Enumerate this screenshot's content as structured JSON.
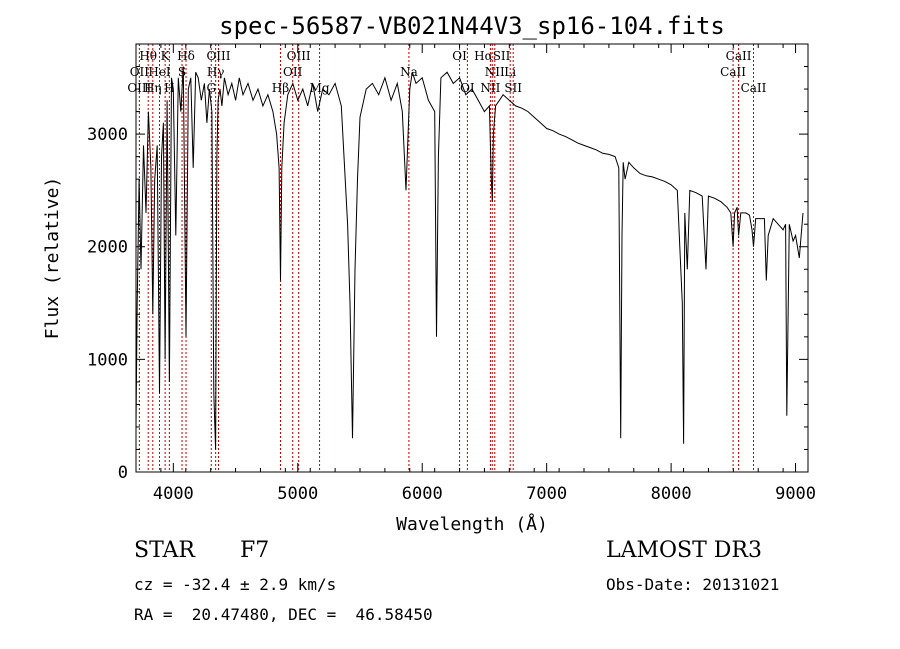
{
  "chart_data": {
    "type": "line",
    "title": "spec-56587-VB021N44V3_sp16-104.fits",
    "xlabel": "Wavelength (Å)",
    "ylabel": "Flux (relative)",
    "xlim": [
      3700,
      9100
    ],
    "ylim": [
      0,
      3800
    ],
    "x_ticks": [
      4000,
      5000,
      6000,
      7000,
      8000,
      9000
    ],
    "y_ticks": [
      0,
      1000,
      2000,
      3000
    ],
    "grid": false,
    "series": [
      {
        "name": "flux",
        "x": [
          3700,
          3710,
          3725,
          3740,
          3760,
          3780,
          3800,
          3820,
          3835,
          3850,
          3870,
          3889,
          3905,
          3920,
          3934,
          3950,
          3968,
          3985,
          4000,
          4020,
          4040,
          4060,
          4080,
          4102,
          4120,
          4140,
          4160,
          4180,
          4200,
          4225,
          4250,
          4270,
          4290,
          4310,
          4325,
          4340,
          4350,
          4360,
          4375,
          4390,
          4410,
          4440,
          4470,
          4500,
          4530,
          4560,
          4600,
          4640,
          4680,
          4720,
          4760,
          4800,
          4830,
          4850,
          4861,
          4872,
          4890,
          4920,
          4960,
          5000,
          5040,
          5080,
          5120,
          5160,
          5200,
          5250,
          5300,
          5350,
          5400,
          5420,
          5440,
          5460,
          5480,
          5500,
          5550,
          5600,
          5650,
          5700,
          5750,
          5800,
          5840,
          5870,
          5890,
          5900,
          5920,
          5950,
          6000,
          6050,
          6100,
          6115,
          6130,
          6150,
          6200,
          6250,
          6300,
          6350,
          6400,
          6450,
          6500,
          6540,
          6555,
          6563,
          6572,
          6590,
          6620,
          6650,
          6700,
          6750,
          6800,
          6850,
          6900,
          6950,
          7000,
          7050,
          7100,
          7150,
          7200,
          7250,
          7300,
          7350,
          7400,
          7450,
          7500,
          7550,
          7580,
          7595,
          7605,
          7615,
          7630,
          7660,
          7700,
          7750,
          7800,
          7850,
          7900,
          7950,
          8000,
          8050,
          8090,
          8100,
          8110,
          8130,
          8150,
          8200,
          8250,
          8280,
          8300,
          8350,
          8400,
          8450,
          8480,
          8498,
          8510,
          8530,
          8542,
          8560,
          8600,
          8630,
          8650,
          8662,
          8680,
          8720,
          8750,
          8765,
          8780,
          8820,
          8860,
          8900,
          8920,
          8930,
          8950,
          8980,
          9000,
          9030,
          9060
        ],
        "values": [
          400,
          1500,
          2600,
          1800,
          2900,
          2300,
          3200,
          2700,
          1400,
          2600,
          2900,
          700,
          2800,
          3100,
          1000,
          3300,
          800,
          3500,
          3400,
          2100,
          3500,
          3200,
          3600,
          1200,
          3400,
          3500,
          2700,
          3550,
          3500,
          3300,
          3450,
          3100,
          3400,
          3200,
          700,
          200,
          2800,
          3300,
          3400,
          3250,
          3500,
          3350,
          3450,
          3300,
          3500,
          3350,
          3450,
          3300,
          3400,
          3250,
          3350,
          3200,
          3000,
          2700,
          1700,
          2700,
          3100,
          3350,
          3450,
          3300,
          3400,
          3250,
          3450,
          3200,
          3400,
          3350,
          3450,
          3250,
          2200,
          1500,
          300,
          1800,
          2600,
          3150,
          3400,
          3450,
          3350,
          3500,
          3300,
          3450,
          3200,
          2500,
          3100,
          3400,
          3550,
          3450,
          3500,
          3300,
          3200,
          1200,
          2800,
          3500,
          3550,
          3450,
          3500,
          3350,
          3400,
          3300,
          3200,
          3250,
          2600,
          2400,
          3000,
          3250,
          3300,
          3350,
          3300,
          3250,
          3230,
          3200,
          3150,
          3100,
          3050,
          3030,
          3000,
          2980,
          2950,
          2920,
          2900,
          2880,
          2860,
          2830,
          2820,
          2800,
          2700,
          300,
          2100,
          2750,
          2600,
          2750,
          2700,
          2650,
          2630,
          2620,
          2600,
          2580,
          2550,
          2500,
          1500,
          250,
          2300,
          1800,
          2500,
          2480,
          2450,
          1800,
          2450,
          2430,
          2400,
          2350,
          2300,
          2000,
          2300,
          2350,
          2100,
          2300,
          2300,
          2280,
          2150,
          2000,
          2250,
          2250,
          2250,
          1700,
          2100,
          2250,
          2200,
          2150,
          2200,
          500,
          2200,
          2050,
          2100,
          1900,
          2300
        ]
      }
    ],
    "line_labels": [
      {
        "text": "Hθ",
        "x": 3798,
        "row": 0
      },
      {
        "text": "OII",
        "x": 3727,
        "row": 1
      },
      {
        "text": "OIII",
        "x": 3727,
        "row": 2
      },
      {
        "text": "K",
        "x": 3934,
        "row": 0
      },
      {
        "text": "HeI",
        "x": 3889,
        "row": 1
      },
      {
        "text": "Hη",
        "x": 3835,
        "row": 2
      },
      {
        "text": "H",
        "x": 3968,
        "row": 2
      },
      {
        "text": "Hδ",
        "x": 4102,
        "row": 0
      },
      {
        "text": "S",
        "x": 4070,
        "row": 1
      },
      {
        "text": "OIII",
        "x": 4363,
        "row": 0
      },
      {
        "text": "Hγ",
        "x": 4340,
        "row": 1
      },
      {
        "text": "G",
        "x": 4305,
        "row": 2
      },
      {
        "text": "OIII",
        "x": 5007,
        "row": 0
      },
      {
        "text": "OII",
        "x": 4959,
        "row": 1
      },
      {
        "text": "Hβ",
        "x": 4861,
        "row": 2
      },
      {
        "text": "Mg",
        "x": 5175,
        "row": 2
      },
      {
        "text": "Na",
        "x": 5893,
        "row": 1
      },
      {
        "text": "OI",
        "x": 6300,
        "row": 0
      },
      {
        "text": "OI",
        "x": 6363,
        "row": 2
      },
      {
        "text": "HαSII",
        "x": 6563,
        "row": 0
      },
      {
        "text": "NII",
        "x": 6583,
        "row": 1
      },
      {
        "text": "NII",
        "x": 6548,
        "row": 2
      },
      {
        "text": "Li",
        "x": 6707,
        "row": 1
      },
      {
        "text": "SII",
        "x": 6731,
        "row": 2
      },
      {
        "text": "CaII",
        "x": 8542,
        "row": 0
      },
      {
        "text": "CaII",
        "x": 8498,
        "row": 1
      },
      {
        "text": "CaII",
        "x": 8662,
        "row": 2
      }
    ],
    "marker_lines": [
      3727,
      3798,
      3835,
      3889,
      3934,
      3968,
      4070,
      4102,
      4305,
      4340,
      4363,
      4861,
      4959,
      5007,
      5175,
      5893,
      6300,
      6363,
      6548,
      6563,
      6583,
      6707,
      6731,
      8498,
      8542,
      8662
    ],
    "colors": {
      "spectrum": "#000000",
      "markers": "#c00000",
      "axis": "#000000"
    }
  },
  "info": {
    "object_type": "STAR",
    "subclass": "F7",
    "survey": "LAMOST DR3",
    "cz": "cz = -32.4 ± 2.9 km/s",
    "obs_date": "Obs-Date: 20131021",
    "coords": "RA =  20.47480, DEC =  46.58450"
  }
}
